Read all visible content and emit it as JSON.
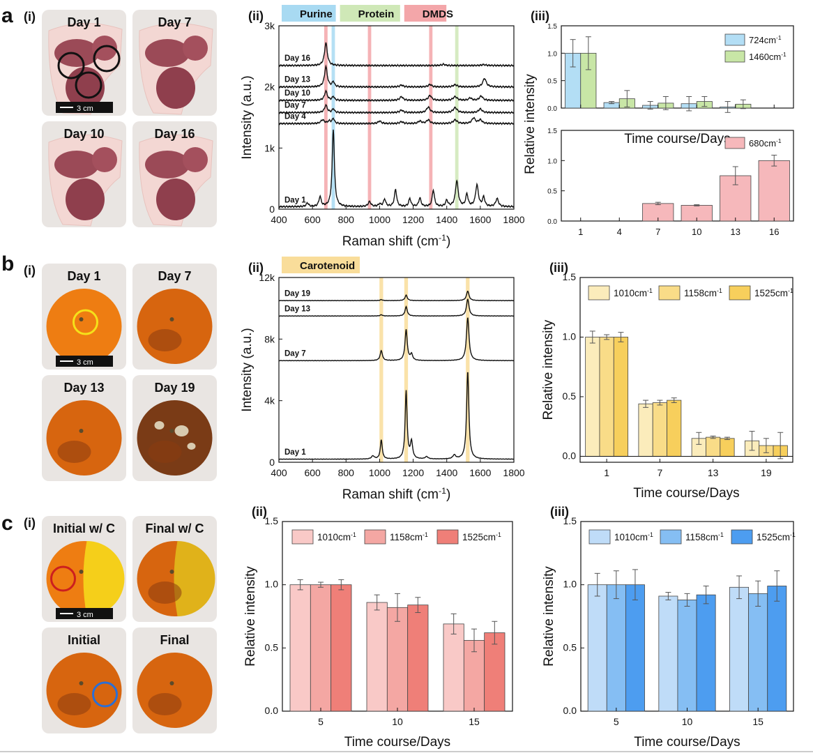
{
  "figure": {
    "rows": [
      {
        "label": "a",
        "photo_panel": {
          "label": "(i)",
          "subject": "meat",
          "photos": [
            "Day 1",
            "Day 7",
            "Day 10",
            "Day 16"
          ],
          "scale_bar": "3 cm",
          "roi_color": "#111111"
        }
      },
      {
        "label": "b",
        "photo_panel": {
          "label": "(i)",
          "subject": "orange",
          "photos": [
            "Day 1",
            "Day 7",
            "Day 13",
            "Day 19"
          ],
          "scale_bar": "3 cm",
          "roi_color": "#f5e11a"
        }
      },
      {
        "label": "c",
        "photo_panel": {
          "label": "(i)",
          "subject": "orange",
          "photos": [
            "Initial w/ C",
            "Final w/ C",
            "Initial",
            "Final"
          ],
          "scale_bar": "3 cm",
          "roi_color": "#cc1f1f",
          "roi_color_2": "#2a6fd6"
        }
      }
    ]
  },
  "chart_data": [
    {
      "id": "a-ii",
      "panel_label": "(ii)",
      "type": "line",
      "xlabel": "Raman shift (cm",
      "xlabel_sup": "-1",
      "ylabel": "Intensity (a.u.)",
      "xlim": [
        400,
        1800
      ],
      "ylim": [
        0,
        3000
      ],
      "x_ticks": [
        "400",
        "600",
        "800",
        "1000",
        "1200",
        "1400",
        "1600",
        "1800"
      ],
      "y_ticks": [
        {
          "value": 0,
          "label": "0"
        },
        {
          "value": 1000,
          "label": "1k"
        },
        {
          "value": 2000,
          "label": "2k"
        },
        {
          "value": 3000,
          "label": "3k"
        }
      ],
      "legend": [
        {
          "name": "Purine",
          "color": "#a8daf2"
        },
        {
          "name": "Protein",
          "color": "#cfe8b7"
        },
        {
          "name": "DMDS",
          "color": "#f3a6a9"
        }
      ],
      "bands": [
        {
          "x": 680,
          "width": 20,
          "color": "#f3a6a9"
        },
        {
          "x": 724,
          "width": 20,
          "color": "#a8daf2"
        },
        {
          "x": 940,
          "width": 20,
          "color": "#f3a6a9"
        },
        {
          "x": 1305,
          "width": 20,
          "color": "#f3a6a9"
        },
        {
          "x": 1460,
          "width": 20,
          "color": "#cfe8b7"
        }
      ],
      "series": [
        {
          "name": "Day 16",
          "offset": 2350,
          "label_y": 2430,
          "peaks": [
            [
              680,
              370,
              10
            ],
            [
              1380,
              20,
              12
            ],
            [
              1620,
              15,
              15
            ]
          ]
        },
        {
          "name": "Day 13",
          "offset": 2000,
          "label_y": 2080,
          "peaks": [
            [
              680,
              330,
              10
            ],
            [
              724,
              80,
              8
            ],
            [
              1130,
              30,
              12
            ],
            [
              1300,
              40,
              12
            ],
            [
              1450,
              35,
              14
            ],
            [
              1625,
              140,
              12
            ]
          ]
        },
        {
          "name": "Day 10",
          "offset": 1780,
          "label_y": 1860,
          "peaks": [
            [
              680,
              150,
              10
            ],
            [
              724,
              60,
              8
            ],
            [
              1130,
              60,
              12
            ],
            [
              1300,
              80,
              12
            ],
            [
              1450,
              60,
              14
            ],
            [
              1540,
              40,
              10
            ],
            [
              1605,
              70,
              12
            ]
          ]
        },
        {
          "name": "Day 7",
          "offset": 1580,
          "label_y": 1660,
          "peaks": [
            [
              680,
              120,
              10
            ],
            [
              724,
              60,
              8
            ],
            [
              1130,
              40,
              12
            ],
            [
              1290,
              90,
              12
            ],
            [
              1450,
              80,
              14
            ],
            [
              1600,
              60,
              12
            ]
          ]
        },
        {
          "name": "Day 4",
          "offset": 1400,
          "label_y": 1480,
          "peaks": [
            [
              660,
              60,
              12
            ],
            [
              700,
              40,
              10
            ],
            [
              724,
              80,
              8
            ],
            [
              1000,
              40,
              12
            ],
            [
              1130,
              30,
              12
            ],
            [
              1240,
              40,
              12
            ],
            [
              1290,
              60,
              12
            ],
            [
              1450,
              60,
              14
            ],
            [
              1560,
              90,
              12
            ],
            [
              1600,
              60,
              12
            ]
          ]
        },
        {
          "name": "Day 1",
          "offset": 40,
          "label_y": 110,
          "peaks": [
            [
              570,
              60,
              8
            ],
            [
              645,
              160,
              8
            ],
            [
              724,
              1260,
              8
            ],
            [
              940,
              80,
              10
            ],
            [
              1000,
              40,
              10
            ],
            [
              1030,
              120,
              8
            ],
            [
              1095,
              280,
              8
            ],
            [
              1180,
              130,
              8
            ],
            [
              1240,
              140,
              8
            ],
            [
              1320,
              270,
              8
            ],
            [
              1400,
              100,
              8
            ],
            [
              1460,
              420,
              10
            ],
            [
              1520,
              200,
              8
            ],
            [
              1580,
              350,
              10
            ],
            [
              1620,
              150,
              8
            ],
            [
              1700,
              130,
              10
            ]
          ]
        }
      ]
    },
    {
      "id": "a-iii-top",
      "panel_label": "(iii)",
      "type": "bar",
      "ylabel": "Relative intensity",
      "xlabel": "Time course/Days",
      "categories": [
        "1",
        "4",
        "7",
        "10",
        "13",
        "16"
      ],
      "ylim": [
        0,
        1.5
      ],
      "y_ticks": [
        "0.0",
        "0.5",
        "1.0",
        "1.5"
      ],
      "series": [
        {
          "name": "724cm",
          "sup": "-1",
          "color": "#b3def5",
          "values": [
            1.0,
            0.1,
            0.05,
            0.08,
            0.02,
            0
          ],
          "errors": [
            0.25,
            0.02,
            0.07,
            0.13,
            0.1,
            0
          ]
        },
        {
          "name": "1460cm",
          "sup": "-1",
          "color": "#c8e6a6",
          "values": [
            1.0,
            0.17,
            0.09,
            0.12,
            0.07,
            0
          ],
          "errors": [
            0.3,
            0.15,
            0.12,
            0.09,
            0.08,
            0
          ]
        }
      ]
    },
    {
      "id": "a-iii-bottom",
      "type": "bar",
      "categories": [
        "1",
        "4",
        "7",
        "10",
        "13",
        "16"
      ],
      "ylim": [
        0,
        1.5
      ],
      "y_ticks": [
        "0.0",
        "0.5",
        "1.0",
        "1.5"
      ],
      "series": [
        {
          "name": "680cm",
          "sup": "-1",
          "color": "#f6b8bb",
          "values": [
            0,
            0,
            0.29,
            0.26,
            0.75,
            1.0
          ],
          "errors": [
            0,
            0,
            0.02,
            0.01,
            0.15,
            0.09
          ]
        }
      ]
    },
    {
      "id": "b-ii",
      "panel_label": "(ii)",
      "type": "line",
      "xlabel": "Raman shift (cm",
      "xlabel_sup": "-1",
      "ylabel": "Intensity (a.u.)",
      "xlim": [
        400,
        1800
      ],
      "ylim": [
        0,
        12000
      ],
      "x_ticks": [
        "400",
        "600",
        "800",
        "1000",
        "1200",
        "1400",
        "1600",
        "1800"
      ],
      "y_ticks": [
        {
          "value": 0,
          "label": "0"
        },
        {
          "value": 4000,
          "label": "4k"
        },
        {
          "value": 8000,
          "label": "8k"
        },
        {
          "value": 12000,
          "label": "12k"
        }
      ],
      "legend": [
        {
          "name": "Carotenoid",
          "color": "#f9dd9a"
        }
      ],
      "bands": [
        {
          "x": 1010,
          "width": 22,
          "color": "#f9dd9a"
        },
        {
          "x": 1158,
          "width": 22,
          "color": "#f9dd9a"
        },
        {
          "x": 1525,
          "width": 22,
          "color": "#f9dd9a"
        }
      ],
      "series": [
        {
          "name": "Day 19",
          "offset": 10500,
          "label_y": 10800,
          "peaks": [
            [
              1010,
              60,
              8
            ],
            [
              1158,
              350,
              8
            ],
            [
              1525,
              620,
              9
            ]
          ]
        },
        {
          "name": "Day 13",
          "offset": 9500,
          "label_y": 9800,
          "peaks": [
            [
              1010,
              80,
              8
            ],
            [
              1158,
              600,
              8
            ],
            [
              1525,
              1100,
              9
            ]
          ]
        },
        {
          "name": "Day 7",
          "offset": 6600,
          "label_y": 6900,
          "peaks": [
            [
              1010,
              650,
              8
            ],
            [
              1158,
              2000,
              8
            ],
            [
              1190,
              400,
              8
            ],
            [
              1525,
              2800,
              9
            ]
          ]
        },
        {
          "name": "Day 1",
          "offset": 200,
          "label_y": 500,
          "peaks": [
            [
              960,
              200,
              10
            ],
            [
              1010,
              1250,
              7
            ],
            [
              1158,
              4400,
              7
            ],
            [
              1190,
              1100,
              8
            ],
            [
              1280,
              150,
              10
            ],
            [
              1445,
              250,
              10
            ],
            [
              1525,
              5700,
              8
            ]
          ]
        }
      ]
    },
    {
      "id": "b-iii",
      "panel_label": "(iii)",
      "type": "bar",
      "ylabel": "Relative intensity",
      "xlabel": "Time course/Days",
      "categories": [
        "1",
        "7",
        "13",
        "19"
      ],
      "ylim": [
        -0.05,
        1.5
      ],
      "y_ticks": [
        "0.0",
        "0.5",
        "1.0",
        "1.5"
      ],
      "series": [
        {
          "name": "1010cm",
          "sup": "-1",
          "color": "#fbecbb",
          "values": [
            1.0,
            0.44,
            0.15,
            0.13
          ],
          "errors": [
            0.05,
            0.03,
            0.05,
            0.08
          ]
        },
        {
          "name": "1158cm",
          "sup": "-1",
          "color": "#f9dc88",
          "values": [
            1.0,
            0.45,
            0.16,
            0.09
          ],
          "errors": [
            0.02,
            0.02,
            0.01,
            0.06
          ]
        },
        {
          "name": "1525cm",
          "sup": "-1",
          "color": "#f7cf5c",
          "values": [
            1.0,
            0.47,
            0.15,
            0.09
          ],
          "errors": [
            0.04,
            0.02,
            0.01,
            0.11
          ]
        }
      ]
    },
    {
      "id": "c-ii",
      "panel_label": "(ii)",
      "type": "bar",
      "ylabel": "Relative intensity",
      "xlabel": "Time course/Days",
      "categories": [
        "5",
        "10",
        "15"
      ],
      "ylim": [
        0,
        1.5
      ],
      "y_ticks": [
        "0.0",
        "0.5",
        "1.0",
        "1.5"
      ],
      "series": [
        {
          "name": "1010cm",
          "sup": "-1",
          "color": "#f9c9c7",
          "values": [
            1.0,
            0.86,
            0.69
          ],
          "errors": [
            0.04,
            0.06,
            0.08
          ]
        },
        {
          "name": "1158cm",
          "sup": "-1",
          "color": "#f4a7a3",
          "values": [
            1.0,
            0.82,
            0.56
          ],
          "errors": [
            0.02,
            0.11,
            0.09
          ]
        },
        {
          "name": "1525cm",
          "sup": "-1",
          "color": "#ef7f78",
          "values": [
            1.0,
            0.84,
            0.62
          ],
          "errors": [
            0.04,
            0.06,
            0.09
          ]
        }
      ]
    },
    {
      "id": "c-iii",
      "panel_label": "(iii)",
      "type": "bar",
      "ylabel": "Relative intensity",
      "xlabel": "Time course/Days",
      "categories": [
        "5",
        "10",
        "15"
      ],
      "ylim": [
        0,
        1.5
      ],
      "y_ticks": [
        "0.0",
        "0.5",
        "1.0",
        "1.5"
      ],
      "series": [
        {
          "name": "1010cm",
          "sup": "-1",
          "color": "#bfdcf8",
          "values": [
            1.0,
            0.91,
            0.98
          ],
          "errors": [
            0.09,
            0.03,
            0.09
          ]
        },
        {
          "name": "1158cm",
          "sup": "-1",
          "color": "#85bef3",
          "values": [
            1.0,
            0.88,
            0.93
          ],
          "errors": [
            0.11,
            0.05,
            0.1
          ]
        },
        {
          "name": "1525cm",
          "sup": "-1",
          "color": "#4d9df0",
          "values": [
            1.0,
            0.92,
            0.99
          ],
          "errors": [
            0.12,
            0.07,
            0.12
          ]
        }
      ]
    }
  ]
}
